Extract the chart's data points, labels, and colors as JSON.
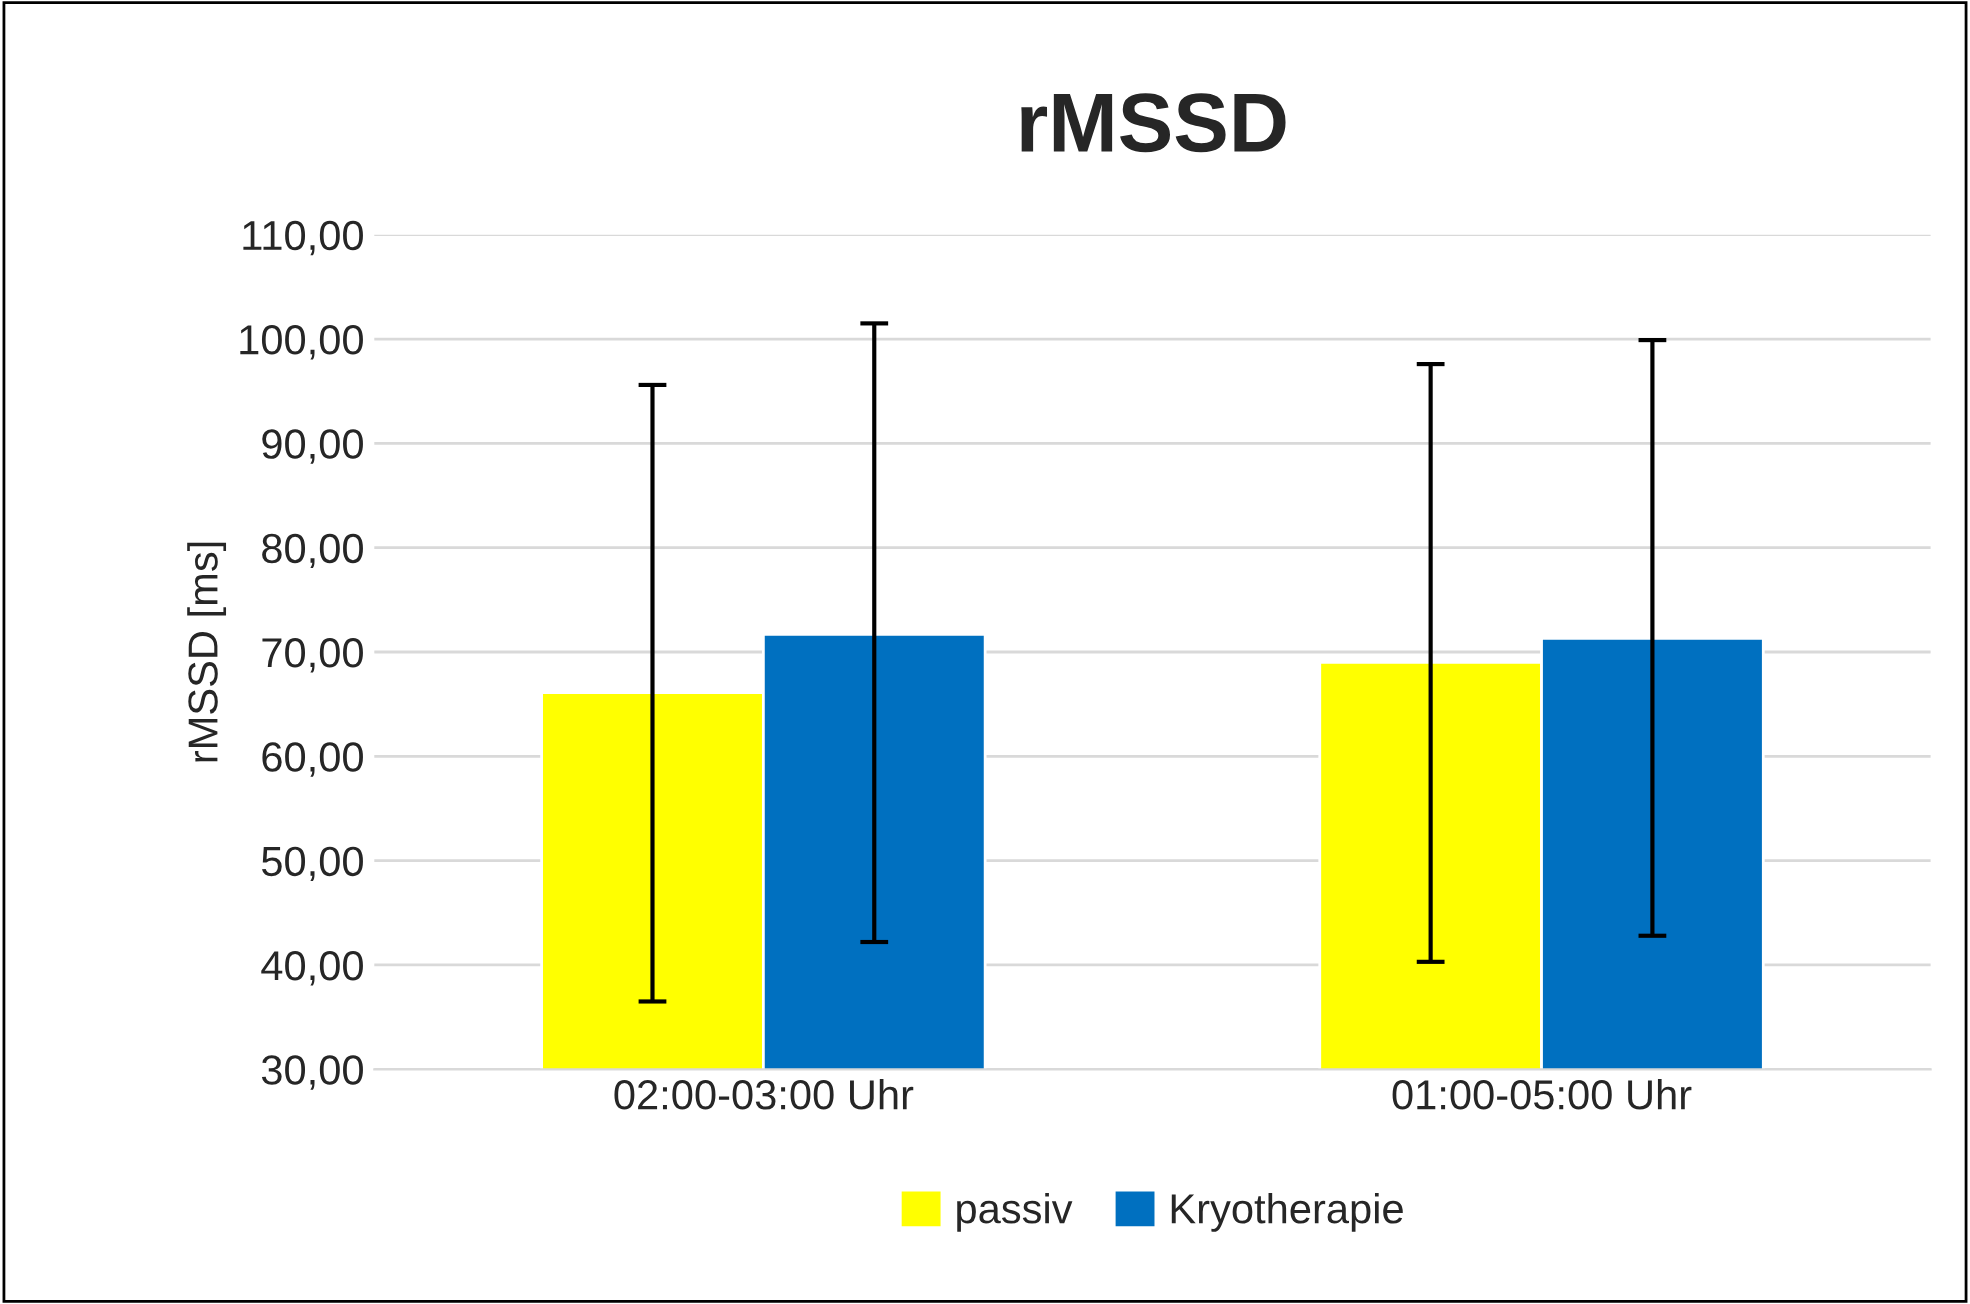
{
  "chart_data": {
    "type": "bar",
    "title": "rMSSD",
    "ylabel": "rMSSD [ms]",
    "categories": [
      "02:00-03:00 Uhr",
      "01:00-05:00 Uhr"
    ],
    "series": [
      {
        "name": "passiv",
        "color": "#ffff00",
        "values": [
          66.1,
          69.0
        ],
        "errors": [
          [
            36.5,
            95.6
          ],
          [
            40.3,
            97.6
          ]
        ]
      },
      {
        "name": "Kryotherapie",
        "color": "#0070c0",
        "values": [
          71.7,
          71.3
        ],
        "errors": [
          [
            42.2,
            101.5
          ],
          [
            42.8,
            99.9
          ]
        ]
      }
    ],
    "ylim": [
      30,
      110
    ],
    "yticks": [
      {
        "value": 30,
        "label": "30,00"
      },
      {
        "value": 40,
        "label": "40,00"
      },
      {
        "value": 50,
        "label": "50,00"
      },
      {
        "value": 60,
        "label": "60,00"
      },
      {
        "value": 70,
        "label": "70,00"
      },
      {
        "value": 80,
        "label": "80,00"
      },
      {
        "value": 90,
        "label": "90,00"
      },
      {
        "value": 100,
        "label": "100,00"
      },
      {
        "value": 110,
        "label": "110,00"
      }
    ],
    "grid": "y",
    "legend": "bottom"
  }
}
